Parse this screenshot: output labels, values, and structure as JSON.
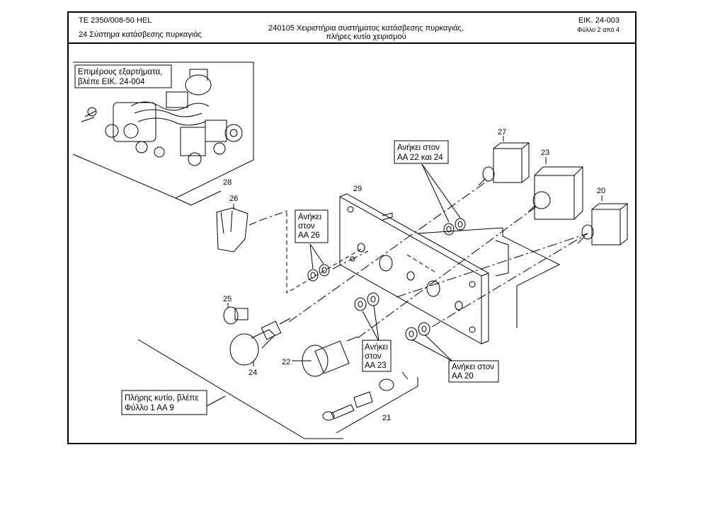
{
  "header": {
    "doc_code": "TE  2350/008-50 HEL",
    "chapter": "24 Σύστημα κατάσβεσης πυρκαγιάς",
    "title_line1": "240105 Χειριστήρια συστήματος κατάσβεσης πυρκαγιάς,",
    "title_line2": "πλήρες κυτίο χειρισμού",
    "figure_no": "ΕΙΚ. 24-003",
    "sheet": "Φύλλο 2 από 4"
  },
  "callouts": {
    "c20": "20",
    "c21": "21",
    "c22": "22",
    "c23": "23",
    "c24": "24",
    "c25": "25",
    "c26": "26",
    "c27": "27",
    "c28": "28",
    "c29": "29"
  },
  "notes": {
    "components": [
      "Επιμέρους εξαρτήματα,",
      "βλέπε ΕΙΚ. 24-004"
    ],
    "aa22_24": [
      "Ανήκει στον",
      "ΑΑ 22 και 24"
    ],
    "aa26": [
      "Ανήκει",
      "στον",
      "ΑΑ 26"
    ],
    "aa23": [
      "Ανήκει",
      "στον",
      "ΑΑ 23"
    ],
    "aa20": [
      "Ανήκει στον",
      "ΑΑ 20"
    ],
    "full_box": [
      "Πλήρης κυτίο, βλέπε",
      "Φύλλο 1  ΑΑ 9"
    ]
  }
}
